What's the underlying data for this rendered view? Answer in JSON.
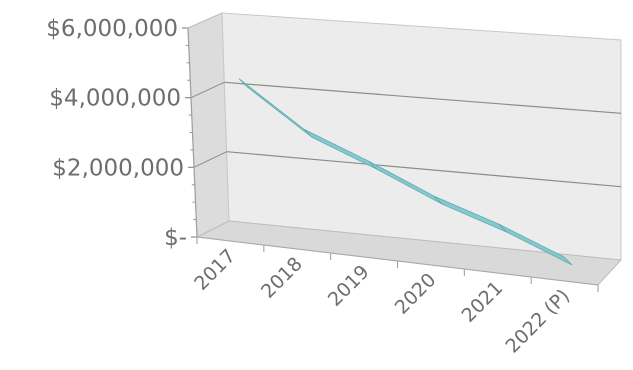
{
  "chart_data": {
    "type": "line",
    "title": "",
    "xlabel": "",
    "ylabel": "",
    "categories": [
      "2017",
      "2018",
      "2019",
      "2020",
      "2021",
      "2022 (P)"
    ],
    "series": [
      {
        "values": [
          4350000,
          3100000,
          2400000,
          1650000,
          1100000,
          450000
        ]
      }
    ],
    "ylim": [
      0,
      6000000
    ],
    "yticks": [
      {
        "value": 0,
        "label": "$-"
      },
      {
        "value": 2000000,
        "label": "$2,000,000"
      },
      {
        "value": 4000000,
        "label": "$4,000,000"
      },
      {
        "value": 6000000,
        "label": "$6,000,000"
      }
    ],
    "grid": true,
    "legend": "none",
    "colors": {
      "line": "#7ec8cc",
      "line_edge": "#5aa8ae",
      "wall": "#ececec",
      "floor": "#d9d9d9",
      "side": "#dcdcdc",
      "grid": "#8c8c8c"
    }
  }
}
